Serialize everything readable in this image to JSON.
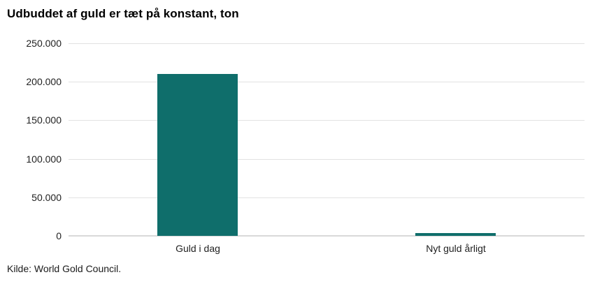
{
  "chart_data": {
    "type": "bar",
    "title": "Udbuddet af guld er tæt på konstant, ton",
    "categories": [
      "Guld i dag",
      "Nyt guld årligt"
    ],
    "values": [
      210000,
      3500
    ],
    "xlabel": "",
    "ylabel": "",
    "ylim": [
      0,
      250000
    ],
    "yticks": [
      0,
      50000,
      100000,
      150000,
      200000,
      250000
    ],
    "ytick_labels": [
      "0",
      "50.000",
      "100.000",
      "150.000",
      "200.000",
      "250.000"
    ],
    "grid": "horizontal",
    "legend_position": "none",
    "bar_color": "#0f6e6b"
  },
  "source": "Kilde: World Gold Council.",
  "colors": {
    "bar": "#0f6e6b",
    "gridline": "#e2e2e2",
    "zero_line": "#d9d9d9",
    "label_text": "#222222",
    "title_text": "#000000"
  }
}
